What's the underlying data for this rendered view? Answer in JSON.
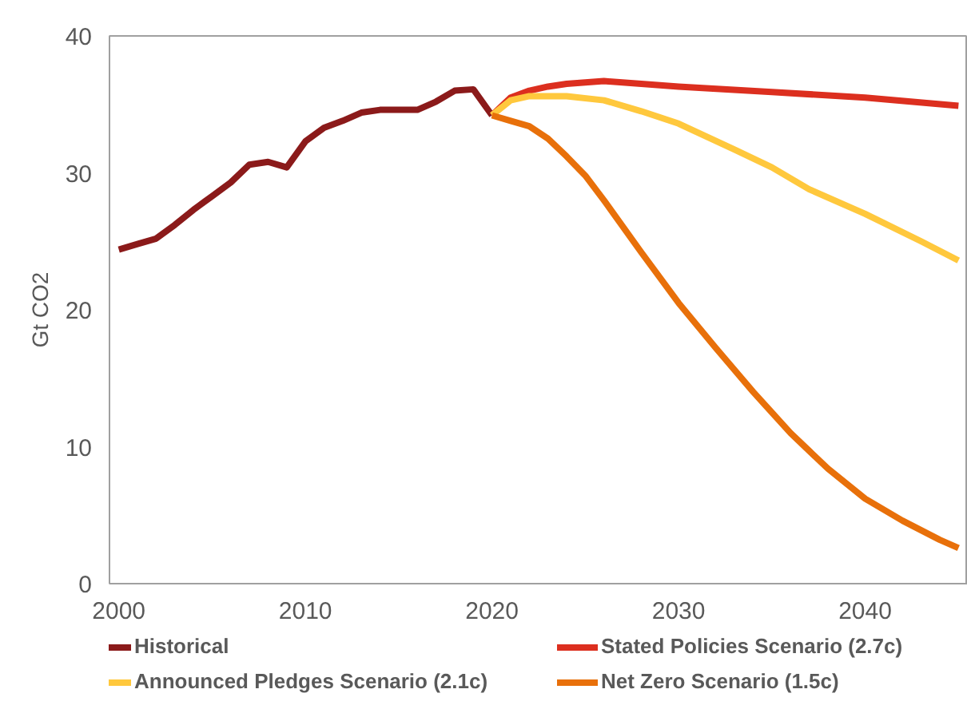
{
  "chart_data": {
    "type": "line",
    "ylabel": "Gt CO2",
    "xlim": [
      1999.5,
      2045.5
    ],
    "xticks": [
      2000,
      2010,
      2020,
      2030,
      2040
    ],
    "ylim": [
      0,
      40
    ],
    "yticks": [
      0,
      10,
      20,
      30,
      40
    ],
    "grid": false,
    "legend": "bottom",
    "marker": "none",
    "line_style": "solid",
    "series": [
      {
        "name": "Historical",
        "color": "#8b1a1a",
        "x": [
          2000,
          2001,
          2002,
          2003,
          2004,
          2005,
          2006,
          2007,
          2008,
          2009,
          2010,
          2011,
          2012,
          2013,
          2014,
          2015,
          2016,
          2017,
          2018,
          2019,
          2020
        ],
        "values": [
          24.4,
          24.8,
          25.2,
          26.2,
          27.3,
          28.3,
          29.3,
          30.6,
          30.8,
          30.4,
          32.3,
          33.3,
          33.8,
          34.4,
          34.6,
          34.6,
          34.6,
          35.2,
          36.0,
          36.1,
          34.2
        ]
      },
      {
        "name": "Stated Policies Scenario (2.7c)",
        "color": "#dc2f1f",
        "x": [
          2020,
          2021,
          2022,
          2023,
          2024,
          2025,
          2026,
          2028,
          2030,
          2035,
          2040,
          2045
        ],
        "values": [
          34.2,
          35.5,
          36.0,
          36.3,
          36.5,
          36.6,
          36.7,
          36.5,
          36.3,
          35.9,
          35.5,
          34.9
        ]
      },
      {
        "name": "Announced Pledges Scenario (2.1c)",
        "color": "#ffc83d",
        "x": [
          2020,
          2021,
          2022,
          2024,
          2026,
          2028,
          2030,
          2033,
          2035,
          2037,
          2040,
          2043,
          2045
        ],
        "values": [
          34.2,
          35.3,
          35.6,
          35.6,
          35.3,
          34.5,
          33.6,
          31.7,
          30.4,
          28.8,
          27.0,
          25.0,
          23.6
        ]
      },
      {
        "name": "Net Zero Scenario (1.5c)",
        "color": "#e8700a",
        "x": [
          2020,
          2021,
          2022,
          2023,
          2024,
          2025,
          2026,
          2028,
          2030,
          2032,
          2034,
          2036,
          2038,
          2040,
          2042,
          2044,
          2045
        ],
        "values": [
          34.2,
          33.8,
          33.4,
          32.5,
          31.2,
          29.8,
          28.0,
          24.2,
          20.5,
          17.2,
          14.0,
          11.0,
          8.4,
          6.2,
          4.6,
          3.2,
          2.6
        ]
      }
    ]
  }
}
